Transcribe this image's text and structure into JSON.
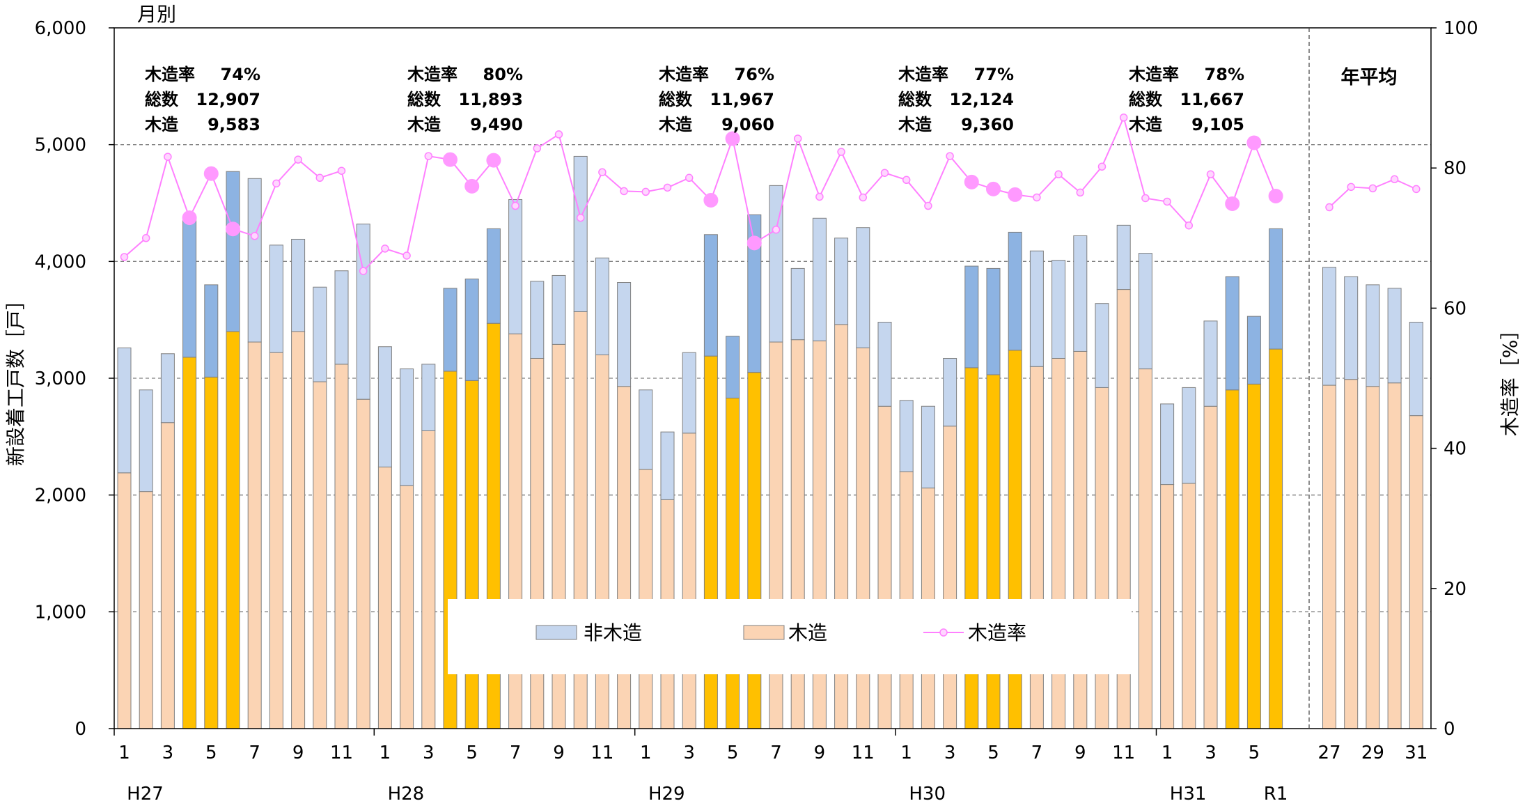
{
  "chart_data": {
    "type": "bar",
    "title": "月別",
    "annual_label": "年平均",
    "ylabel_left": "新設着工戸数［戸］",
    "ylabel_right": "木造率［%］",
    "ylim_left": [
      0,
      6000
    ],
    "ylim_right": [
      0,
      100
    ],
    "left_ticks": [
      "0",
      "1,000",
      "2,000",
      "3,000",
      "4,000",
      "5,000",
      "6,000"
    ],
    "right_ticks": [
      "0",
      "20",
      "40",
      "60",
      "80",
      "100"
    ],
    "grid": "horizontal dashed",
    "legend": {
      "position": "bottom-center",
      "items": [
        {
          "label": "非木造",
          "color": "#c5d6ee"
        },
        {
          "label": "木造",
          "color": "#fbd4b4"
        },
        {
          "label": "木造率",
          "color": "#ff80ff"
        }
      ]
    },
    "colors": {
      "wood": "#fbd4b4",
      "wood_highlight": "#ffc000",
      "nonwood": "#c5d6ee",
      "nonwood_highlight": "#8db3e2",
      "rate": "#ff80ff",
      "rate_marker_big": "#ff99ff"
    },
    "era_labels": [
      "H27",
      "H28",
      "H29",
      "H30",
      "H31",
      "R1"
    ],
    "monthly": {
      "x_labels": [
        "1",
        "",
        "3",
        "",
        "5",
        "",
        "7",
        "",
        "9",
        "",
        "11",
        "",
        "1",
        "",
        "3",
        "",
        "5",
        "",
        "7",
        "",
        "9",
        "",
        "11",
        "",
        "1",
        "",
        "3",
        "",
        "5",
        "",
        "7",
        "",
        "9",
        "",
        "11",
        "",
        "1",
        "",
        "3",
        "",
        "5",
        "",
        "7",
        "",
        "9",
        "",
        "11",
        "",
        "1",
        "",
        "3",
        "",
        "5",
        ""
      ],
      "total": [
        3260,
        2900,
        3210,
        4360,
        3800,
        4770,
        4710,
        4140,
        4190,
        3780,
        3920,
        4320,
        3270,
        3080,
        3120,
        3770,
        3850,
        4280,
        4530,
        3830,
        3880,
        4900,
        4030,
        3820,
        2900,
        2540,
        3220,
        4230,
        3360,
        4400,
        4650,
        3940,
        4370,
        4200,
        4290,
        3480,
        2810,
        2760,
        3170,
        3960,
        3940,
        4250,
        4090,
        4010,
        4220,
        3640,
        4310,
        4070,
        2780,
        2920,
        3490,
        3870,
        3530,
        4280
      ],
      "wood": [
        2190,
        2030,
        2620,
        3180,
        3010,
        3400,
        3310,
        3220,
        3400,
        2970,
        3120,
        2820,
        2240,
        2080,
        2550,
        3060,
        2980,
        3470,
        3380,
        3170,
        3290,
        3570,
        3200,
        2930,
        2220,
        1960,
        2530,
        3190,
        2830,
        3050,
        3310,
        3330,
        3320,
        3460,
        3260,
        2760,
        2200,
        2060,
        2590,
        3090,
        3030,
        3240,
        3100,
        3170,
        3230,
        2920,
        3760,
        3080,
        2090,
        2100,
        2760,
        2900,
        2950,
        3250
      ],
      "rate": [
        67.3,
        70.0,
        81.6,
        72.9,
        79.2,
        71.3,
        70.3,
        77.8,
        81.2,
        78.6,
        79.6,
        65.3,
        68.5,
        67.5,
        81.7,
        81.2,
        77.4,
        81.1,
        74.6,
        82.8,
        84.8,
        72.9,
        79.4,
        76.7,
        76.6,
        77.2,
        78.6,
        75.4,
        84.2,
        69.3,
        71.2,
        84.2,
        75.9,
        82.3,
        75.8,
        79.3,
        78.3,
        74.6,
        81.7,
        78.0,
        77.0,
        76.2,
        75.8,
        79.1,
        76.5,
        80.2,
        87.2,
        75.7,
        75.2,
        71.8,
        79.1,
        74.9,
        83.6,
        76.0
      ],
      "highlight": [
        false,
        false,
        false,
        true,
        true,
        true,
        false,
        false,
        false,
        false,
        false,
        false,
        false,
        false,
        false,
        true,
        true,
        true,
        false,
        false,
        false,
        false,
        false,
        false,
        false,
        false,
        false,
        true,
        true,
        true,
        false,
        false,
        false,
        false,
        false,
        false,
        false,
        false,
        false,
        true,
        true,
        true,
        false,
        false,
        false,
        false,
        false,
        false,
        false,
        false,
        false,
        true,
        true,
        true
      ]
    },
    "annual": {
      "x_labels": [
        "27",
        "",
        "29",
        "",
        "31"
      ],
      "total": [
        3950,
        3870,
        3800,
        3770,
        3480
      ],
      "wood": [
        2940,
        2990,
        2930,
        2960,
        2680
      ],
      "rate": [
        74.4,
        77.3,
        77.1,
        78.4,
        77.0
      ]
    },
    "annotations": [
      {
        "rate_label": "木造率",
        "rate": "74%",
        "total_label": "総数",
        "total": "12,907",
        "wood_label": "木造",
        "wood": "9,583"
      },
      {
        "rate_label": "木造率",
        "rate": "80%",
        "total_label": "総数",
        "total": "11,893",
        "wood_label": "木造",
        "wood": "9,490"
      },
      {
        "rate_label": "木造率",
        "rate": "76%",
        "total_label": "総数",
        "total": "11,967",
        "wood_label": "木造",
        "wood": "9,060"
      },
      {
        "rate_label": "木造率",
        "rate": "77%",
        "total_label": "総数",
        "total": "12,124",
        "wood_label": "木造",
        "wood": "9,360"
      },
      {
        "rate_label": "木造率",
        "rate": "78%",
        "total_label": "総数",
        "total": "11,667",
        "wood_label": "木造",
        "wood": "9,105"
      }
    ]
  }
}
